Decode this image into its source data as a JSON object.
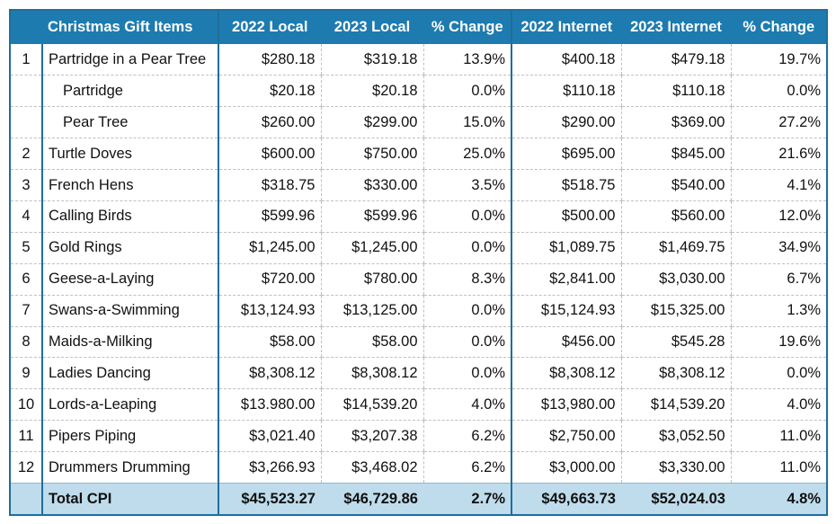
{
  "table": {
    "headers": {
      "num": "",
      "item": "Christmas Gift Items",
      "local_2022": "2022 Local",
      "local_2023": "2023 Local",
      "local_change": "% Change",
      "internet_2022": "2022 Internet",
      "internet_2023": "2023 Internet",
      "internet_change": "% Change"
    },
    "rows": [
      {
        "num": "1",
        "item": "Partridge in a Pear Tree",
        "sub": false,
        "local_2022": "$280.18",
        "local_2023": "$319.18",
        "local_change": "13.9%",
        "internet_2022": "$400.18",
        "internet_2023": "$479.18",
        "internet_change": "19.7%"
      },
      {
        "num": "",
        "item": "Partridge",
        "sub": true,
        "local_2022": "$20.18",
        "local_2023": "$20.18",
        "local_change": "0.0%",
        "internet_2022": "$110.18",
        "internet_2023": "$110.18",
        "internet_change": "0.0%"
      },
      {
        "num": "",
        "item": "Pear Tree",
        "sub": true,
        "local_2022": "$260.00",
        "local_2023": "$299.00",
        "local_change": "15.0%",
        "internet_2022": "$290.00",
        "internet_2023": "$369.00",
        "internet_change": "27.2%"
      },
      {
        "num": "2",
        "item": "Turtle Doves",
        "sub": false,
        "local_2022": "$600.00",
        "local_2023": "$750.00",
        "local_change": "25.0%",
        "internet_2022": "$695.00",
        "internet_2023": "$845.00",
        "internet_change": "21.6%"
      },
      {
        "num": "3",
        "item": "French Hens",
        "sub": false,
        "local_2022": "$318.75",
        "local_2023": "$330.00",
        "local_change": "3.5%",
        "internet_2022": "$518.75",
        "internet_2023": "$540.00",
        "internet_change": "4.1%"
      },
      {
        "num": "4",
        "item": "Calling Birds",
        "sub": false,
        "local_2022": "$599.96",
        "local_2023": "$599.96",
        "local_change": "0.0%",
        "internet_2022": "$500.00",
        "internet_2023": "$560.00",
        "internet_change": "12.0%"
      },
      {
        "num": "5",
        "item": "Gold Rings",
        "sub": false,
        "local_2022": "$1,245.00",
        "local_2023": "$1,245.00",
        "local_change": "0.0%",
        "internet_2022": "$1,089.75",
        "internet_2023": "$1,469.75",
        "internet_change": "34.9%"
      },
      {
        "num": "6",
        "item": "Geese-a-Laying",
        "sub": false,
        "local_2022": "$720.00",
        "local_2023": "$780.00",
        "local_change": "8.3%",
        "internet_2022": "$2,841.00",
        "internet_2023": "$3,030.00",
        "internet_change": "6.7%"
      },
      {
        "num": "7",
        "item": "Swans-a-Swimming",
        "sub": false,
        "local_2022": "$13,124.93",
        "local_2023": "$13,125.00",
        "local_change": "0.0%",
        "internet_2022": "$15,124.93",
        "internet_2023": "$15,325.00",
        "internet_change": "1.3%"
      },
      {
        "num": "8",
        "item": "Maids-a-Milking",
        "sub": false,
        "local_2022": "$58.00",
        "local_2023": "$58.00",
        "local_change": "0.0%",
        "internet_2022": "$456.00",
        "internet_2023": "$545.28",
        "internet_change": "19.6%"
      },
      {
        "num": "9",
        "item": "Ladies Dancing",
        "sub": false,
        "local_2022": "$8,308.12",
        "local_2023": "$8,308.12",
        "local_change": "0.0%",
        "internet_2022": "$8,308.12",
        "internet_2023": "$8,308.12",
        "internet_change": "0.0%"
      },
      {
        "num": "10",
        "item": "Lords-a-Leaping",
        "sub": false,
        "local_2022": "$13.980.00",
        "local_2023": "$14,539.20",
        "local_change": "4.0%",
        "internet_2022": "$13,980.00",
        "internet_2023": "$14,539.20",
        "internet_change": "4.0%"
      },
      {
        "num": "11",
        "item": "Pipers Piping",
        "sub": false,
        "local_2022": "$3,021.40",
        "local_2023": "$3,207.38",
        "local_change": "6.2%",
        "internet_2022": "$2,750.00",
        "internet_2023": "$3,052.50",
        "internet_change": "11.0%"
      },
      {
        "num": "12",
        "item": "Drummers Drumming",
        "sub": false,
        "local_2022": "$3,266.93",
        "local_2023": "$3,468.02",
        "local_change": "6.2%",
        "internet_2022": "$3,000.00",
        "internet_2023": "$3,330.00",
        "internet_change": "11.0%"
      }
    ],
    "total": {
      "num": "",
      "item": "Total CPI",
      "local_2022": "$45,523.27",
      "local_2023": "$46,729.86",
      "local_change": "2.7%",
      "internet_2022": "$49,663.73",
      "internet_2023": "$52,024.03",
      "internet_change": "4.8%"
    }
  },
  "colors": {
    "header_bg": "#1e7bb0",
    "header_text": "#ffffff",
    "border": "#1e6e9c",
    "total_bg": "#bfdcec",
    "grid_dashed": "#bfbfbf"
  }
}
